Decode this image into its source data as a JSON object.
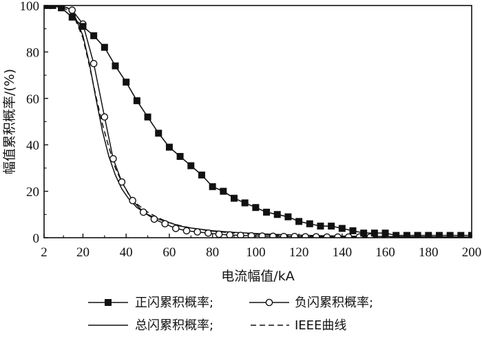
{
  "chart_data": {
    "type": "line",
    "title": "",
    "xlabel": "电流幅值/kA",
    "ylabel": "幅值累积概率/(%)",
    "xlim": [
      2,
      200
    ],
    "ylim": [
      0,
      100
    ],
    "x_ticks": [
      2,
      20,
      40,
      60,
      80,
      100,
      120,
      140,
      160,
      180,
      200
    ],
    "y_ticks": [
      0,
      20,
      40,
      60,
      80,
      100
    ],
    "grid": false,
    "legend_position": "bottom",
    "series": [
      {
        "name": "正闪累积概率;",
        "style": "line-square",
        "color": "#111111",
        "x": [
          2,
          4,
          6,
          10,
          15,
          20,
          25,
          30,
          35,
          40,
          45,
          50,
          55,
          60,
          65,
          70,
          75,
          80,
          85,
          90,
          95,
          100,
          105,
          110,
          115,
          120,
          125,
          130,
          135,
          140,
          145,
          150,
          155,
          160,
          165,
          170,
          175,
          180,
          185,
          190,
          195,
          200
        ],
        "y": [
          100,
          100,
          100,
          99,
          95,
          91,
          87,
          82,
          74,
          67,
          59,
          52,
          45,
          39,
          35,
          31,
          27,
          22,
          20,
          17,
          15,
          13,
          11,
          10,
          9,
          7,
          6,
          5,
          5,
          4,
          3,
          2,
          2,
          2,
          1,
          1,
          1,
          1,
          1,
          1,
          1,
          1
        ]
      },
      {
        "name": "负闪累积概率;",
        "style": "line-circle",
        "color": "#111111",
        "x": [
          2,
          5,
          10,
          15,
          20,
          25,
          30,
          34,
          38,
          43,
          48,
          53,
          58,
          63,
          68,
          73,
          78,
          83,
          88,
          93,
          98,
          103,
          108,
          113,
          118,
          123,
          128,
          133,
          138,
          143,
          148,
          153
        ],
        "y": [
          100,
          100,
          100,
          98,
          92,
          75,
          52,
          34,
          24,
          16,
          11,
          8,
          6,
          4,
          3,
          2.5,
          2,
          1.5,
          1.2,
          1,
          0.8,
          0.7,
          0.6,
          0.5,
          0.5,
          0.4,
          0.4,
          0.3,
          0.3,
          0.3,
          0.3,
          0.3
        ]
      },
      {
        "name": "总闪累积概率;",
        "style": "solid",
        "color": "#111111",
        "x": [
          2,
          5,
          10,
          13,
          16,
          20,
          23,
          26,
          29,
          32,
          35,
          38,
          41,
          45,
          50,
          55,
          60,
          65,
          70,
          80,
          90,
          100,
          110,
          120,
          130,
          140,
          150,
          160,
          170,
          180,
          190,
          200
        ],
        "y": [
          100,
          100,
          99.5,
          99,
          96,
          87,
          75,
          60,
          46,
          35,
          27,
          21,
          17,
          13,
          10,
          8,
          6.5,
          5,
          4.2,
          3,
          2.3,
          1.8,
          1.4,
          1.1,
          0.9,
          0.7,
          0.6,
          0.5,
          0.45,
          0.4,
          0.35,
          0.3
        ]
      },
      {
        "name": "IEEE曲线",
        "style": "dashed",
        "color": "#111111",
        "x": [
          2,
          5,
          10,
          13,
          16,
          20,
          23,
          26,
          29,
          32,
          35,
          38,
          41,
          45,
          50,
          55,
          60,
          65,
          70,
          80,
          90,
          100,
          110,
          120,
          130,
          140,
          150,
          160,
          170,
          180,
          190,
          200
        ],
        "y": [
          100,
          99.9,
          99.2,
          98,
          95,
          86,
          74,
          61,
          49,
          39,
          30,
          24,
          19,
          14.5,
          11,
          8.5,
          6.5,
          5.2,
          4.2,
          2.8,
          2,
          1.5,
          1.1,
          0.85,
          0.67,
          0.54,
          0.44,
          0.36,
          0.3,
          0.25,
          0.22,
          0.19
        ]
      }
    ]
  }
}
